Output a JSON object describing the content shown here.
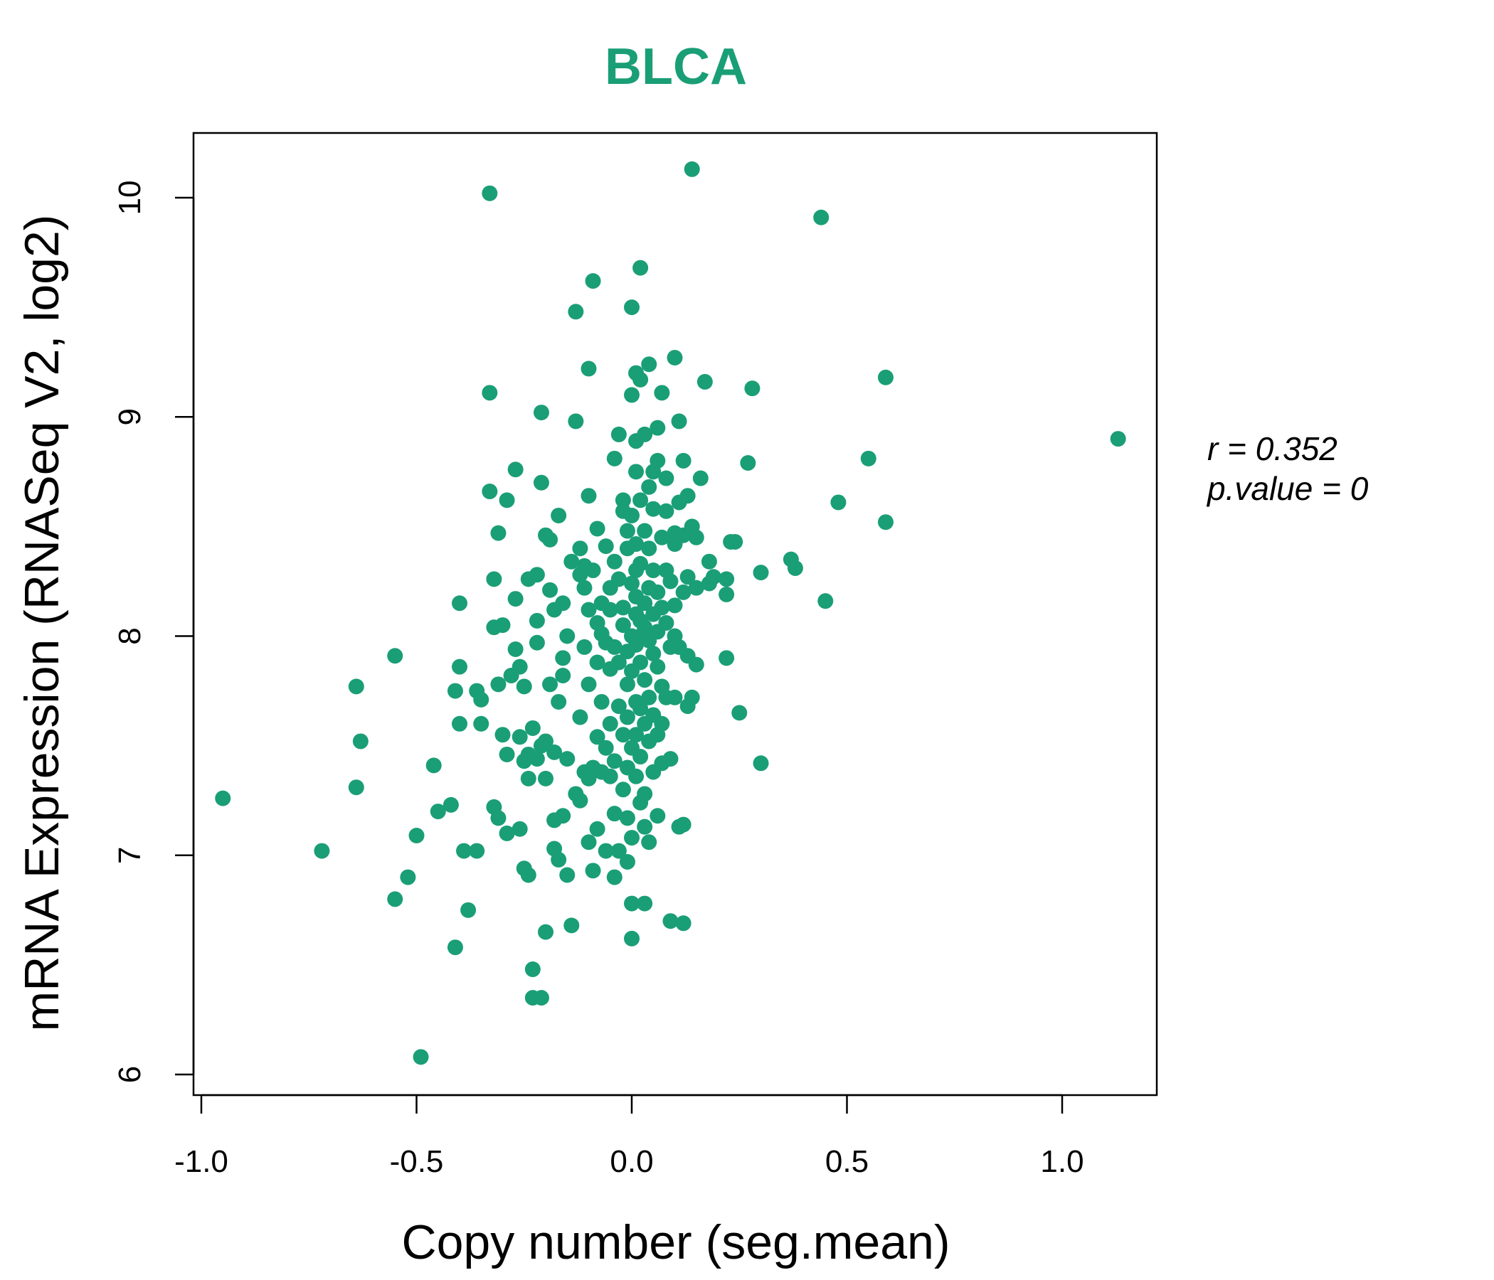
{
  "chart_data": {
    "type": "scatter",
    "title": "BLCA",
    "xlabel": "Copy number (seg.mean)",
    "ylabel": "mRNA Expression (RNASeq V2, log2)",
    "xlim": [
      -1.0,
      1.2
    ],
    "ylim": [
      6.0,
      10.3
    ],
    "xticks": [
      "-1.0",
      "-0.5",
      "0.0",
      "0.5",
      "1.0"
    ],
    "yticks": [
      "6",
      "7",
      "8",
      "9",
      "10"
    ],
    "stats": {
      "r_label": "r = 0.352",
      "p_label": "p.value = 0"
    },
    "point_color": "#1a9e76",
    "grid": false,
    "points": [
      [
        -0.95,
        7.26
      ],
      [
        -0.72,
        7.02
      ],
      [
        -0.64,
        7.77
      ],
      [
        -0.63,
        7.52
      ],
      [
        -0.64,
        7.31
      ],
      [
        -0.55,
        7.91
      ],
      [
        -0.55,
        6.8
      ],
      [
        -0.52,
        6.9
      ],
      [
        -0.5,
        7.09
      ],
      [
        -0.49,
        6.08
      ],
      [
        -0.46,
        7.41
      ],
      [
        -0.45,
        7.2
      ],
      [
        -0.42,
        7.23
      ],
      [
        -0.41,
        7.75
      ],
      [
        -0.4,
        7.86
      ],
      [
        -0.4,
        8.15
      ],
      [
        -0.4,
        7.6
      ],
      [
        -0.41,
        6.58
      ],
      [
        -0.39,
        7.02
      ],
      [
        -0.38,
        6.75
      ],
      [
        -0.36,
        7.02
      ],
      [
        -0.36,
        7.75
      ],
      [
        -0.35,
        7.6
      ],
      [
        -0.35,
        7.71
      ],
      [
        -0.33,
        8.66
      ],
      [
        -0.33,
        9.11
      ],
      [
        -0.33,
        10.02
      ],
      [
        -0.32,
        7.22
      ],
      [
        -0.32,
        8.04
      ],
      [
        -0.32,
        8.26
      ],
      [
        -0.31,
        7.17
      ],
      [
        -0.31,
        8.47
      ],
      [
        -0.31,
        7.78
      ],
      [
        -0.3,
        7.55
      ],
      [
        -0.3,
        8.05
      ],
      [
        -0.29,
        8.62
      ],
      [
        -0.29,
        7.46
      ],
      [
        -0.29,
        7.1
      ],
      [
        -0.28,
        7.82
      ],
      [
        -0.27,
        7.94
      ],
      [
        -0.27,
        8.17
      ],
      [
        -0.27,
        8.76
      ],
      [
        -0.26,
        7.54
      ],
      [
        -0.26,
        7.12
      ],
      [
        -0.26,
        7.86
      ],
      [
        -0.25,
        7.43
      ],
      [
        -0.25,
        6.94
      ],
      [
        -0.25,
        7.77
      ],
      [
        -0.24,
        8.26
      ],
      [
        -0.24,
        7.35
      ],
      [
        -0.24,
        6.91
      ],
      [
        -0.24,
        7.46
      ],
      [
        -0.23,
        6.48
      ],
      [
        -0.23,
        6.35
      ],
      [
        -0.23,
        7.58
      ],
      [
        -0.22,
        8.07
      ],
      [
        -0.22,
        7.97
      ],
      [
        -0.22,
        8.28
      ],
      [
        -0.22,
        7.44
      ],
      [
        -0.21,
        9.02
      ],
      [
        -0.21,
        6.35
      ],
      [
        -0.21,
        7.5
      ],
      [
        -0.21,
        8.7
      ],
      [
        -0.2,
        8.46
      ],
      [
        -0.2,
        7.35
      ],
      [
        -0.2,
        6.65
      ],
      [
        -0.2,
        7.52
      ],
      [
        -0.19,
        8.21
      ],
      [
        -0.19,
        7.78
      ],
      [
        -0.19,
        8.44
      ],
      [
        -0.18,
        7.16
      ],
      [
        -0.18,
        7.03
      ],
      [
        -0.18,
        8.12
      ],
      [
        -0.18,
        7.47
      ],
      [
        -0.17,
        8.55
      ],
      [
        -0.17,
        7.7
      ],
      [
        -0.17,
        6.98
      ],
      [
        -0.16,
        8.15
      ],
      [
        -0.16,
        7.82
      ],
      [
        -0.16,
        7.18
      ],
      [
        -0.16,
        7.9
      ],
      [
        -0.15,
        8.0
      ],
      [
        -0.15,
        7.44
      ],
      [
        -0.15,
        6.91
      ],
      [
        -0.14,
        6.68
      ],
      [
        -0.14,
        8.34
      ],
      [
        -0.13,
        9.48
      ],
      [
        -0.13,
        7.28
      ],
      [
        -0.13,
        8.98
      ],
      [
        -0.12,
        8.28
      ],
      [
        -0.12,
        8.4
      ],
      [
        -0.12,
        7.63
      ],
      [
        -0.12,
        7.25
      ],
      [
        -0.11,
        7.38
      ],
      [
        -0.11,
        8.22
      ],
      [
        -0.11,
        7.95
      ],
      [
        -0.11,
        8.32
      ],
      [
        -0.1,
        9.22
      ],
      [
        -0.1,
        7.06
      ],
      [
        -0.1,
        7.78
      ],
      [
        -0.1,
        8.12
      ],
      [
        -0.1,
        8.64
      ],
      [
        -0.1,
        7.35
      ],
      [
        -0.09,
        6.93
      ],
      [
        -0.09,
        9.62
      ],
      [
        -0.09,
        7.4
      ],
      [
        -0.09,
        8.3
      ],
      [
        -0.08,
        8.49
      ],
      [
        -0.08,
        8.06
      ],
      [
        -0.08,
        7.88
      ],
      [
        -0.08,
        7.12
      ],
      [
        -0.08,
        7.54
      ],
      [
        -0.07,
        7.7
      ],
      [
        -0.07,
        8.15
      ],
      [
        -0.07,
        7.38
      ],
      [
        -0.07,
        8.01
      ],
      [
        -0.06,
        7.49
      ],
      [
        -0.06,
        8.41
      ],
      [
        -0.06,
        7.97
      ],
      [
        -0.06,
        7.02
      ],
      [
        -0.05,
        8.22
      ],
      [
        -0.05,
        7.6
      ],
      [
        -0.05,
        8.12
      ],
      [
        -0.05,
        7.36
      ],
      [
        -0.05,
        7.85
      ],
      [
        -0.04,
        8.34
      ],
      [
        -0.04,
        8.81
      ],
      [
        -0.04,
        7.95
      ],
      [
        -0.04,
        7.19
      ],
      [
        -0.04,
        6.9
      ],
      [
        -0.04,
        7.43
      ],
      [
        -0.03,
        8.26
      ],
      [
        -0.03,
        7.68
      ],
      [
        -0.03,
        7.02
      ],
      [
        -0.03,
        7.88
      ],
      [
        -0.03,
        8.92
      ],
      [
        -0.02,
        8.57
      ],
      [
        -0.02,
        8.05
      ],
      [
        -0.02,
        7.3
      ],
      [
        -0.02,
        8.62
      ],
      [
        -0.02,
        7.55
      ],
      [
        -0.02,
        8.13
      ],
      [
        -0.01,
        7.93
      ],
      [
        -0.01,
        8.4
      ],
      [
        -0.01,
        7.78
      ],
      [
        -0.01,
        8.48
      ],
      [
        -0.01,
        7.4
      ],
      [
        -0.01,
        6.97
      ],
      [
        -0.01,
        7.17
      ],
      [
        -0.01,
        7.63
      ],
      [
        0.0,
        8.24
      ],
      [
        0.0,
        8.0
      ],
      [
        0.0,
        7.84
      ],
      [
        0.0,
        8.55
      ],
      [
        0.0,
        7.49
      ],
      [
        0.0,
        9.1
      ],
      [
        0.0,
        9.5
      ],
      [
        0.0,
        7.08
      ],
      [
        0.0,
        6.78
      ],
      [
        0.0,
        6.62
      ],
      [
        0.01,
        8.3
      ],
      [
        0.01,
        8.1
      ],
      [
        0.01,
        7.96
      ],
      [
        0.01,
        7.7
      ],
      [
        0.01,
        8.42
      ],
      [
        0.01,
        7.36
      ],
      [
        0.01,
        8.18
      ],
      [
        0.01,
        7.55
      ],
      [
        0.01,
        8.75
      ],
      [
        0.01,
        9.2
      ],
      [
        0.01,
        8.89
      ],
      [
        0.02,
        8.07
      ],
      [
        0.02,
        7.88
      ],
      [
        0.02,
        8.62
      ],
      [
        0.02,
        7.24
      ],
      [
        0.02,
        8.33
      ],
      [
        0.02,
        7.45
      ],
      [
        0.02,
        9.68
      ],
      [
        0.02,
        8.0
      ],
      [
        0.02,
        7.67
      ],
      [
        0.02,
        9.17
      ],
      [
        0.03,
        8.15
      ],
      [
        0.03,
        8.48
      ],
      [
        0.03,
        7.8
      ],
      [
        0.03,
        7.6
      ],
      [
        0.03,
        8.04
      ],
      [
        0.03,
        7.28
      ],
      [
        0.03,
        8.92
      ],
      [
        0.03,
        7.13
      ],
      [
        0.03,
        6.78
      ],
      [
        0.04,
        8.22
      ],
      [
        0.04,
        7.98
      ],
      [
        0.04,
        8.4
      ],
      [
        0.04,
        9.24
      ],
      [
        0.04,
        7.52
      ],
      [
        0.04,
        7.72
      ],
      [
        0.04,
        8.68
      ],
      [
        0.04,
        7.06
      ],
      [
        0.05,
        8.1
      ],
      [
        0.05,
        7.92
      ],
      [
        0.05,
        8.3
      ],
      [
        0.05,
        7.64
      ],
      [
        0.05,
        8.75
      ],
      [
        0.05,
        7.38
      ],
      [
        0.05,
        8.58
      ],
      [
        0.06,
        8.02
      ],
      [
        0.06,
        8.2
      ],
      [
        0.06,
        7.86
      ],
      [
        0.06,
        7.55
      ],
      [
        0.06,
        8.8
      ],
      [
        0.06,
        8.95
      ],
      [
        0.06,
        7.18
      ],
      [
        0.07,
        8.13
      ],
      [
        0.07,
        7.77
      ],
      [
        0.07,
        8.45
      ],
      [
        0.07,
        7.6
      ],
      [
        0.07,
        9.11
      ],
      [
        0.07,
        7.42
      ],
      [
        0.08,
        8.06
      ],
      [
        0.08,
        8.3
      ],
      [
        0.08,
        7.72
      ],
      [
        0.08,
        8.72
      ],
      [
        0.08,
        8.57
      ],
      [
        0.09,
        7.95
      ],
      [
        0.09,
        8.25
      ],
      [
        0.09,
        7.44
      ],
      [
        0.09,
        6.7
      ],
      [
        0.1,
        8.47
      ],
      [
        0.1,
        7.72
      ],
      [
        0.1,
        8.14
      ],
      [
        0.1,
        9.27
      ],
      [
        0.1,
        8.0
      ],
      [
        0.1,
        8.42
      ],
      [
        0.11,
        8.98
      ],
      [
        0.11,
        8.61
      ],
      [
        0.11,
        7.13
      ],
      [
        0.11,
        7.95
      ],
      [
        0.12,
        8.2
      ],
      [
        0.12,
        8.46
      ],
      [
        0.12,
        6.69
      ],
      [
        0.12,
        8.8
      ],
      [
        0.12,
        7.14
      ],
      [
        0.13,
        7.68
      ],
      [
        0.13,
        8.27
      ],
      [
        0.13,
        7.91
      ],
      [
        0.13,
        8.64
      ],
      [
        0.14,
        8.5
      ],
      [
        0.14,
        7.72
      ],
      [
        0.14,
        10.13
      ],
      [
        0.15,
        8.22
      ],
      [
        0.15,
        7.87
      ],
      [
        0.15,
        8.45
      ],
      [
        0.16,
        8.72
      ],
      [
        0.17,
        9.16
      ],
      [
        0.18,
        8.34
      ],
      [
        0.18,
        8.24
      ],
      [
        0.19,
        8.27
      ],
      [
        0.22,
        8.26
      ],
      [
        0.22,
        8.19
      ],
      [
        0.22,
        7.9
      ],
      [
        0.23,
        8.43
      ],
      [
        0.24,
        8.43
      ],
      [
        0.25,
        7.65
      ],
      [
        0.27,
        8.79
      ],
      [
        0.28,
        9.13
      ],
      [
        0.3,
        8.29
      ],
      [
        0.3,
        7.42
      ],
      [
        0.37,
        8.35
      ],
      [
        0.38,
        8.31
      ],
      [
        0.44,
        9.91
      ],
      [
        0.45,
        8.16
      ],
      [
        0.48,
        8.61
      ],
      [
        0.55,
        8.81
      ],
      [
        0.59,
        9.18
      ],
      [
        0.59,
        8.52
      ],
      [
        1.13,
        8.9
      ]
    ]
  }
}
